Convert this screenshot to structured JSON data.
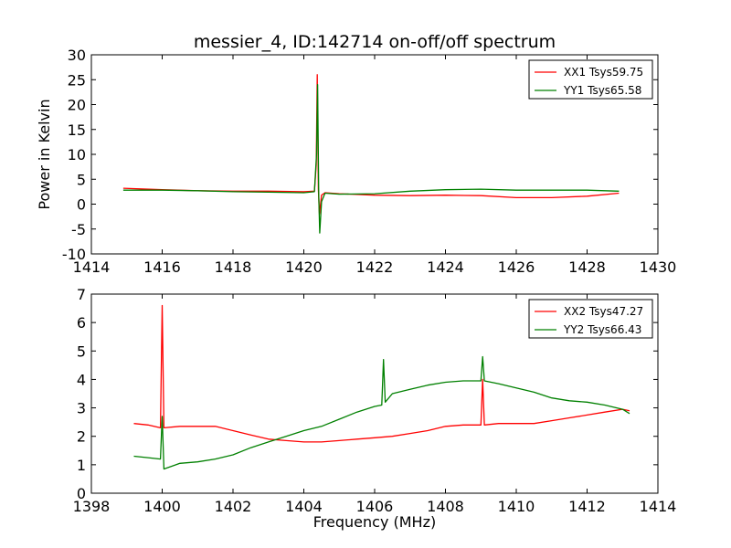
{
  "chart_data": [
    {
      "type": "line",
      "title": "messier_4, ID:142714 on-off/off spectrum",
      "xlabel": "",
      "ylabel": "Power in Kelvin",
      "xlim": [
        1414,
        1430
      ],
      "ylim": [
        -10,
        30
      ],
      "xticks": [
        1414,
        1416,
        1418,
        1420,
        1422,
        1424,
        1426,
        1428,
        1430
      ],
      "yticks": [
        -10,
        -5,
        0,
        5,
        10,
        15,
        20,
        25,
        30
      ],
      "legend_position": "top-right",
      "series": [
        {
          "name": "XX1 Tsys59.75",
          "color": "#ff0000",
          "x": [
            1414.9,
            1416,
            1417,
            1418,
            1419,
            1420,
            1420.3,
            1420.35,
            1420.38,
            1420.41,
            1420.44,
            1420.5,
            1420.6,
            1421,
            1422,
            1423,
            1424,
            1425,
            1426,
            1427,
            1428,
            1428.9
          ],
          "y": [
            3.2,
            2.9,
            2.7,
            2.6,
            2.6,
            2.5,
            2.6,
            8.0,
            26.0,
            3.0,
            -2.0,
            1.8,
            2.3,
            2.1,
            1.8,
            1.7,
            1.8,
            1.7,
            1.3,
            1.3,
            1.6,
            2.2
          ]
        },
        {
          "name": "YY1 Tsys65.58",
          "color": "#008000",
          "x": [
            1414.9,
            1416,
            1417,
            1418,
            1419,
            1420,
            1420.3,
            1420.36,
            1420.39,
            1420.42,
            1420.45,
            1420.5,
            1420.6,
            1421,
            1422,
            1423,
            1424,
            1425,
            1426,
            1427,
            1428,
            1428.9
          ],
          "y": [
            2.8,
            2.8,
            2.7,
            2.5,
            2.4,
            2.3,
            2.5,
            10.0,
            24.0,
            2.0,
            -5.8,
            0.5,
            2.2,
            2.0,
            2.1,
            2.6,
            2.9,
            3.0,
            2.8,
            2.8,
            2.8,
            2.6
          ]
        }
      ]
    },
    {
      "type": "line",
      "title": "",
      "xlabel": "Frequency (MHz)",
      "ylabel": "",
      "xlim": [
        1398,
        1414
      ],
      "ylim": [
        0,
        7
      ],
      "xticks": [
        1398,
        1400,
        1402,
        1404,
        1406,
        1408,
        1410,
        1412,
        1414
      ],
      "yticks": [
        0,
        1,
        2,
        3,
        4,
        5,
        6,
        7
      ],
      "legend_position": "top-right",
      "series": [
        {
          "name": "XX2 Tsys47.27",
          "color": "#ff0000",
          "x": [
            1399.2,
            1399.6,
            1399.95,
            1400.0,
            1400.05,
            1400.5,
            1401,
            1401.5,
            1402,
            1402.5,
            1403,
            1403.5,
            1404,
            1404.5,
            1405,
            1405.5,
            1406,
            1406.5,
            1407,
            1407.5,
            1408,
            1408.5,
            1409.0,
            1409.05,
            1409.1,
            1409.5,
            1410,
            1410.5,
            1411,
            1411.5,
            1412,
            1412.5,
            1413,
            1413.2
          ],
          "y": [
            2.45,
            2.4,
            2.3,
            6.6,
            2.3,
            2.35,
            2.35,
            2.35,
            2.2,
            2.05,
            1.9,
            1.85,
            1.8,
            1.8,
            1.85,
            1.9,
            1.95,
            2.0,
            2.1,
            2.2,
            2.35,
            2.4,
            2.4,
            4.0,
            2.4,
            2.45,
            2.45,
            2.45,
            2.55,
            2.65,
            2.75,
            2.85,
            2.95,
            2.9
          ]
        },
        {
          "name": "YY2 Tsys66.43",
          "color": "#008000",
          "x": [
            1399.2,
            1399.6,
            1399.95,
            1400.0,
            1400.05,
            1400.5,
            1401,
            1401.5,
            1402,
            1402.5,
            1403,
            1403.5,
            1404,
            1404.5,
            1405,
            1405.5,
            1406,
            1406.2,
            1406.25,
            1406.3,
            1406.5,
            1407,
            1407.5,
            1408,
            1408.5,
            1409.0,
            1409.05,
            1409.1,
            1409.5,
            1410,
            1410.5,
            1411,
            1411.5,
            1412,
            1412.5,
            1413,
            1413.2
          ],
          "y": [
            1.3,
            1.25,
            1.2,
            2.7,
            0.85,
            1.05,
            1.1,
            1.2,
            1.35,
            1.6,
            1.8,
            2.0,
            2.2,
            2.35,
            2.6,
            2.85,
            3.05,
            3.1,
            4.7,
            3.2,
            3.5,
            3.65,
            3.8,
            3.9,
            3.95,
            3.95,
            4.8,
            3.95,
            3.85,
            3.7,
            3.55,
            3.35,
            3.25,
            3.2,
            3.1,
            2.95,
            2.8
          ]
        }
      ]
    }
  ]
}
